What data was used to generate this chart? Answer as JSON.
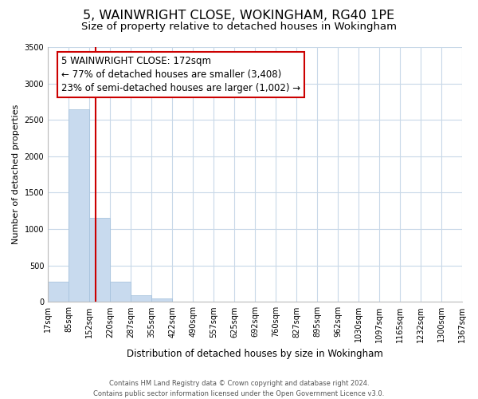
{
  "title": "5, WAINWRIGHT CLOSE, WOKINGHAM, RG40 1PE",
  "subtitle": "Size of property relative to detached houses in Wokingham",
  "bar_values": [
    280,
    2650,
    1150,
    280,
    90,
    50,
    0,
    0,
    0,
    0,
    0,
    0,
    0,
    0,
    0,
    0,
    0,
    0,
    0,
    0
  ],
  "bin_edges": [
    17,
    85,
    152,
    220,
    287,
    355,
    422,
    490,
    557,
    625,
    692,
    760,
    827,
    895,
    962,
    1030,
    1097,
    1165,
    1232,
    1300,
    1367
  ],
  "tick_labels": [
    "17sqm",
    "85sqm",
    "152sqm",
    "220sqm",
    "287sqm",
    "355sqm",
    "422sqm",
    "490sqm",
    "557sqm",
    "625sqm",
    "692sqm",
    "760sqm",
    "827sqm",
    "895sqm",
    "962sqm",
    "1030sqm",
    "1097sqm",
    "1165sqm",
    "1232sqm",
    "1300sqm",
    "1367sqm"
  ],
  "bar_color": "#c8daee",
  "bar_edge_color": "#a8c4de",
  "property_line_x": 172,
  "property_line_color": "#cc0000",
  "annotation_text_line1": "5 WAINWRIGHT CLOSE: 172sqm",
  "annotation_text_line2": "← 77% of detached houses are smaller (3,408)",
  "annotation_text_line3": "23% of semi-detached houses are larger (1,002) →",
  "ylabel": "Number of detached properties",
  "xlabel": "Distribution of detached houses by size in Wokingham",
  "ylim": [
    0,
    3500
  ],
  "yticks": [
    0,
    500,
    1000,
    1500,
    2000,
    2500,
    3000,
    3500
  ],
  "footer_line1": "Contains HM Land Registry data © Crown copyright and database right 2024.",
  "footer_line2": "Contains public sector information licensed under the Open Government Licence v3.0.",
  "background_color": "#ffffff",
  "grid_color": "#c8d8e8",
  "title_fontsize": 11.5,
  "subtitle_fontsize": 9.5,
  "annotation_fontsize": 8.5
}
